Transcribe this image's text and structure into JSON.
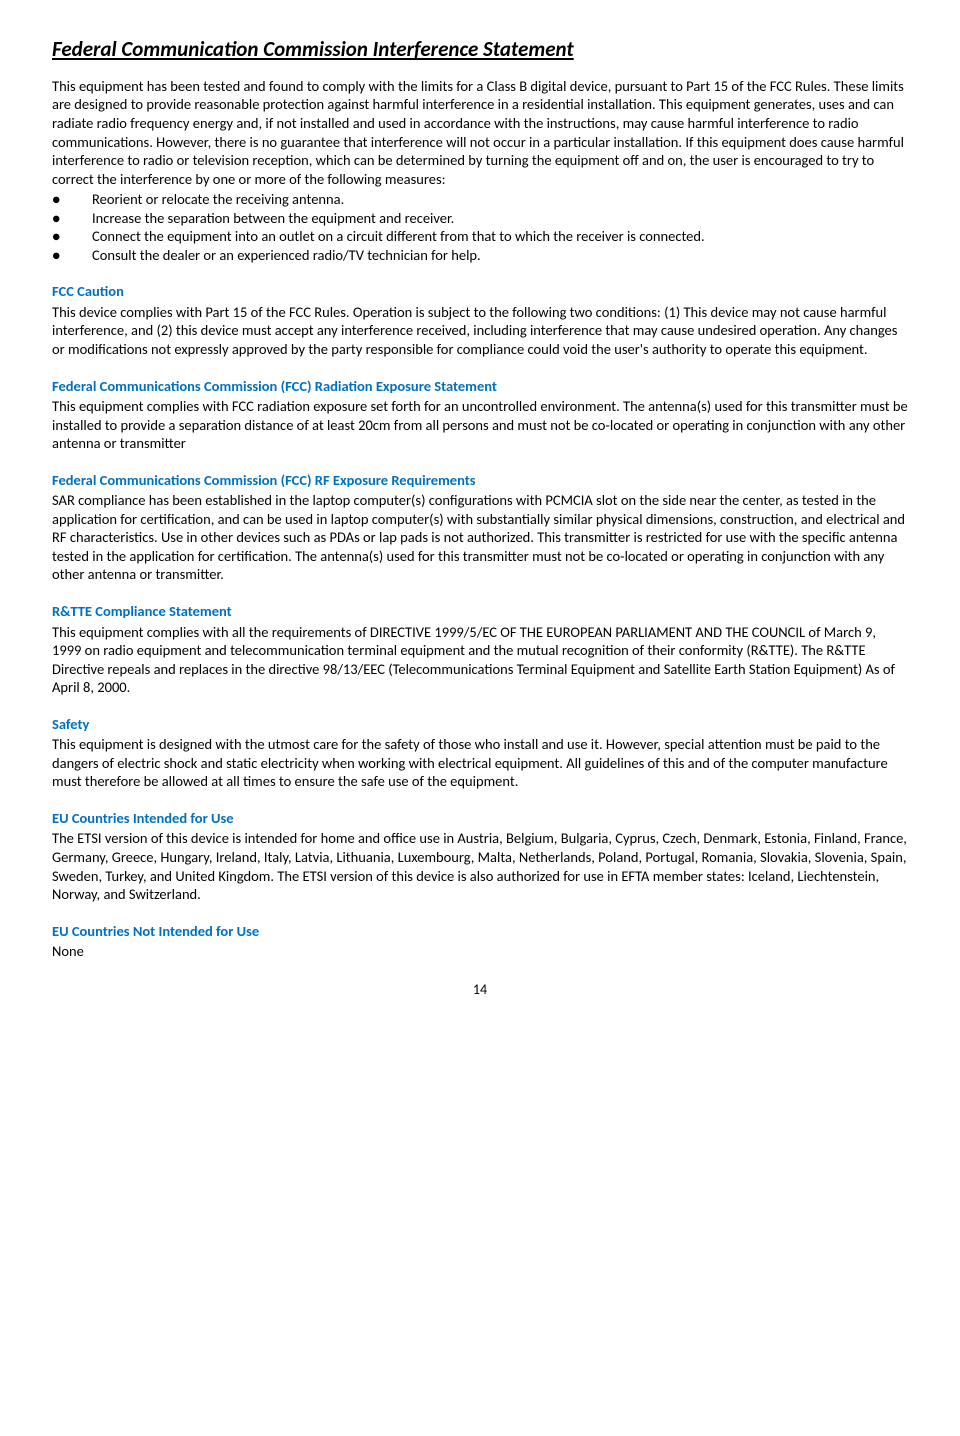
{
  "title": "Federal Communication Commission Interference Statement",
  "intro": "This equipment has been tested and found to comply with the limits for a Class B digital device, pursuant to Part 15 of the FCC Rules.   These limits are designed to provide reasonable protection against harmful interference in a residential installation.   This equipment generates, uses and can radiate radio frequency energy and, if not installed and used in accordance with the instructions, may cause harmful interference to radio communications.   However, there is no guarantee that interference will not occur in a particular installation.   If this equipment does cause harmful interference to radio or television reception, which can be determined by turning the equipment off and on, the user is encouraged to try to correct the interference by one or more of the following measures:",
  "bullets": [
    "Reorient or relocate the receiving antenna.",
    "Increase the separation between the equipment and receiver.",
    "Connect the equipment into an outlet on a circuit different from that to which the receiver is connected.",
    "Consult the dealer or an experienced radio/TV technician for help."
  ],
  "sections": [
    {
      "heading": "FCC Caution",
      "body": "This device complies with Part 15 of the FCC Rules. Operation is subject to the following two conditions: (1) This device may not cause harmful interference, and (2) this device must accept any interference received, including interference that may cause undesired operation.   Any changes or modifications not expressly approved by the party responsible for compliance could void the user's authority to operate this equipment."
    },
    {
      "heading": "Federal Communications Commission (FCC) Radiation Exposure Statement",
      "body": "This equipment complies with FCC radiation exposure set forth for an uncontrolled environment. The antenna(s) used for this transmitter must be installed to provide a separation distance of at least 20cm from all persons and must not be co-located or operating in conjunction with any other antenna or transmitter"
    },
    {
      "heading": "Federal Communications Commission (FCC) RF Exposure Requirements",
      "body": "SAR compliance has been established in the laptop computer(s) configurations with PCMCIA slot on the side near the center, as tested in the application for certification, and can be used in laptop computer(s) with substantially similar physical dimensions, construction, and electrical and RF characteristics. Use in other devices such as PDAs or lap pads is not authorized. This transmitter is restricted for use with the specific antenna tested in the application for certification. The antenna(s) used for this transmitter must not be co-located or operating in conjunction with any other antenna or transmitter."
    },
    {
      "heading": "R&TTE Compliance Statement",
      "body": "This equipment complies with all the requirements of DIRECTIVE 1999/5/EC OF THE EUROPEAN PARLIAMENT AND THE COUNCIL of March 9, 1999 on radio equipment and telecommunication terminal equipment and the mutual recognition of their conformity (R&TTE). The R&TTE Directive repeals and replaces in the directive 98/13/EEC (Telecommunications Terminal Equipment and Satellite Earth Station Equipment) As of April 8, 2000."
    },
    {
      "heading": "Safety",
      "body": "This equipment is designed with the utmost care for the safety of those who install and use it. However, special attention must be paid to the dangers of electric shock and static electricity when working with electrical equipment. All guidelines of this and of the computer manufacture must therefore be allowed at all times to ensure the safe use of the equipment."
    },
    {
      "heading": "EU Countries Intended for Use",
      "body": "The ETSI version of this device is intended for home and office use in Austria, Belgium, Bulgaria, Cyprus, Czech, Denmark, Estonia, Finland, France, Germany, Greece, Hungary, Ireland, Italy, Latvia, Lithuania, Luxembourg, Malta, Netherlands, Poland, Portugal, Romania, Slovakia, Slovenia, Spain, Sweden, Turkey, and United Kingdom. The ETSI version of this device is also authorized for use in EFTA member states: Iceland, Liechtenstein, Norway, and Switzerland."
    },
    {
      "heading": "EU Countries Not Intended for Use",
      "body": "None"
    }
  ],
  "pageNumber": "14",
  "colors": {
    "headingBlue": "#0070c0",
    "text": "#000000",
    "background": "#ffffff"
  }
}
